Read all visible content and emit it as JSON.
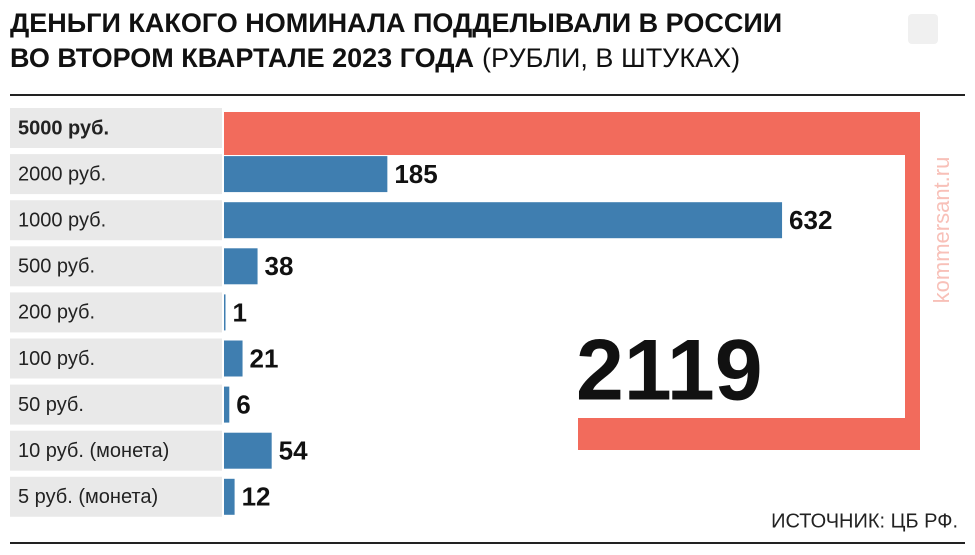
{
  "chart_data": {
    "type": "bar",
    "title": [
      "ДЕНЬГИ КАКОГО НОМИНАЛА ПОДДЕЛЫВАЛИ В РОССИИ",
      "ВО ВТОРОМ КВАРТАЛЕ 2023 ГОДА"
    ],
    "unit_note": "(РУБЛИ, В ШТУКАХ)",
    "categories": [
      "5000 руб.",
      "2000 руб.",
      "1000 руб.",
      "500 руб.",
      "200 руб.",
      "100 руб.",
      "50 руб.",
      "10 руб. (монета)",
      "5 руб. (монета)"
    ],
    "values": [
      2119,
      185,
      632,
      38,
      1,
      21,
      6,
      54,
      12
    ],
    "color": "#3f7eb0",
    "highlight_color": "#f26b5c",
    "source": "ИСТОЧНИК: ЦБ РФ.",
    "watermark": "kommersant.ru"
  }
}
